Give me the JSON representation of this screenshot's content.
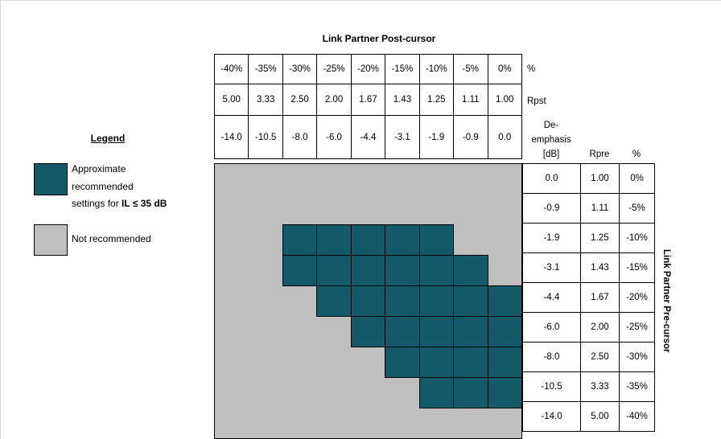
{
  "title": "Link Partner Post-cursor",
  "right_axis_label": "Link Partner Pre-cursor",
  "colors": {
    "recommended": "#14596A",
    "not_recommended": "#BFBFBF",
    "border": "#000000"
  },
  "legend": {
    "heading": "Legend",
    "recommended_line1": "Approximate",
    "recommended_line2": "recommended",
    "recommended_line3_normal": "settings for ",
    "recommended_line3_bold": "IL ≤ 35 dB",
    "not_recommended": "Not recommended"
  },
  "post_cursor": {
    "percent": [
      "-40%",
      "-35%",
      "-30%",
      "-25%",
      "-20%",
      "-15%",
      "-10%",
      "-5%",
      "0%"
    ],
    "percent_label": "%",
    "rpst": [
      "5.00",
      "3.33",
      "2.50",
      "2.00",
      "1.67",
      "1.43",
      "1.25",
      "1.11",
      "1.00"
    ],
    "rpst_label": "Rpst",
    "deemphasis": [
      "-14.0",
      "-10.5",
      "-8.0",
      "-6.0",
      "-4.4",
      "-3.1",
      "-1.9",
      "-0.9",
      "0.0"
    ]
  },
  "pre_cursor": {
    "header_line1": "De-",
    "header_line2": "emphasis",
    "header_line3": "[dB]",
    "rpre_label": "Rpre",
    "percent_label": "%",
    "rows": [
      {
        "deemphasis": "0.0",
        "rpre": "1.00",
        "percent": "0%"
      },
      {
        "deemphasis": "-0.9",
        "rpre": "1.11",
        "percent": "-5%"
      },
      {
        "deemphasis": "-1.9",
        "rpre": "1.25",
        "percent": "-10%"
      },
      {
        "deemphasis": "-3.1",
        "rpre": "1.43",
        "percent": "-15%"
      },
      {
        "deemphasis": "-4.4",
        "rpre": "1.67",
        "percent": "-20%"
      },
      {
        "deemphasis": "-6.0",
        "rpre": "2.00",
        "percent": "-25%"
      },
      {
        "deemphasis": "-8.0",
        "rpre": "2.50",
        "percent": "-30%"
      },
      {
        "deemphasis": "-10.5",
        "rpre": "3.33",
        "percent": "-35%"
      },
      {
        "deemphasis": "-14.0",
        "rpre": "5.00",
        "percent": "-40%"
      }
    ]
  },
  "chart_data": {
    "type": "heatmap",
    "title": "Link Partner Post-cursor",
    "xlabel": "Link Partner Post-cursor de-emphasis [dB] / Rpst / %",
    "ylabel": "Link Partner Pre-cursor de-emphasis [dB] / Rpre / %",
    "x_categories": [
      "-14.0",
      "-10.5",
      "-8.0",
      "-6.0",
      "-4.4",
      "-3.1",
      "-1.9",
      "-0.9",
      "0.0"
    ],
    "y_categories": [
      "0.0",
      "-0.9",
      "-1.9",
      "-3.1",
      "-4.4",
      "-6.0",
      "-8.0",
      "-10.5",
      "-14.0"
    ],
    "matrix": [
      [
        0,
        0,
        0,
        0,
        0,
        0,
        0,
        0,
        0
      ],
      [
        0,
        0,
        0,
        0,
        0,
        0,
        0,
        0,
        0
      ],
      [
        0,
        0,
        1,
        1,
        1,
        1,
        1,
        0,
        0
      ],
      [
        0,
        0,
        1,
        1,
        1,
        1,
        1,
        1,
        0
      ],
      [
        0,
        0,
        0,
        1,
        1,
        1,
        1,
        1,
        1
      ],
      [
        0,
        0,
        0,
        0,
        1,
        1,
        1,
        1,
        1
      ],
      [
        0,
        0,
        0,
        0,
        0,
        1,
        1,
        1,
        1
      ],
      [
        0,
        0,
        0,
        0,
        0,
        0,
        1,
        1,
        1
      ],
      [
        0,
        0,
        0,
        0,
        0,
        0,
        0,
        0,
        0
      ]
    ],
    "value_meaning": {
      "1": "Approximate recommended settings for IL ≤ 35 dB",
      "0": "Not recommended"
    },
    "legend_position": "left",
    "grid": "off"
  }
}
